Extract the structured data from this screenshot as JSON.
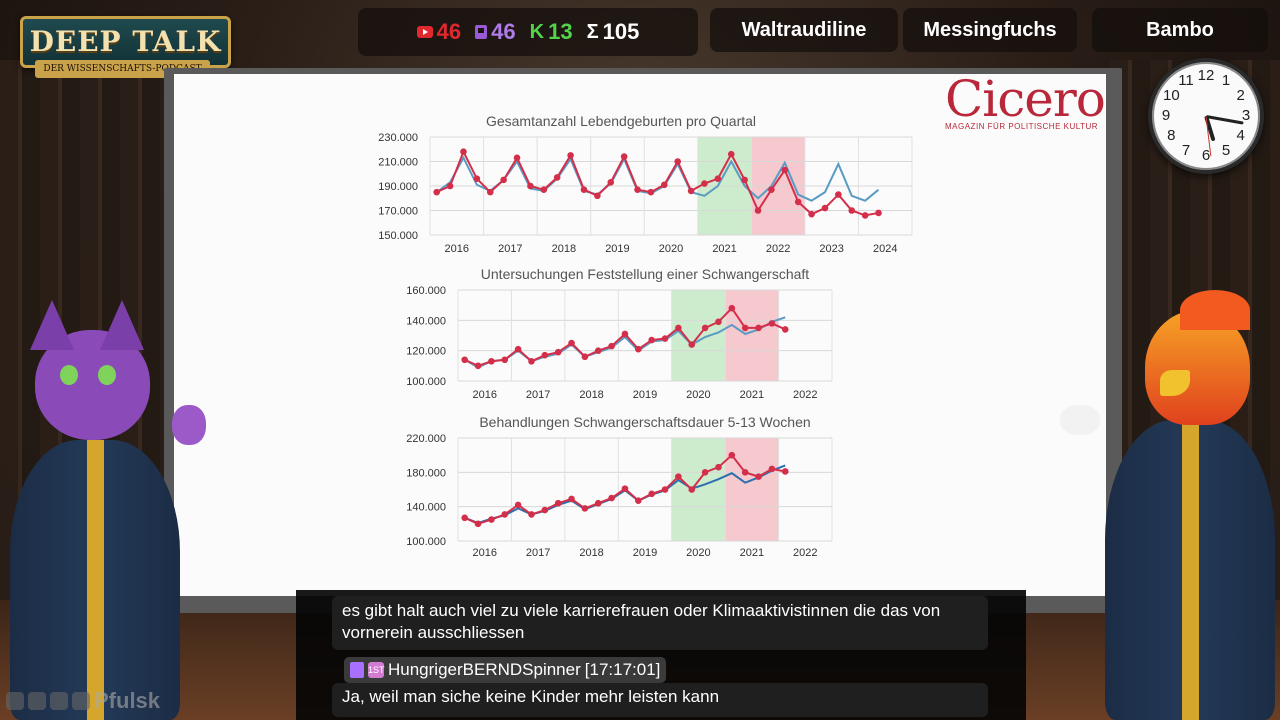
{
  "logo": {
    "title": "DEEP TALK",
    "subtitle": "DER WISSENSCHAFTS-PODCAST"
  },
  "stats": [
    {
      "icon": "youtube-icon",
      "value": "46",
      "color": "#e0282e"
    },
    {
      "icon": "twitch-icon",
      "value": "46",
      "color": "#b07be8"
    },
    {
      "icon": "kick-icon",
      "value": "13",
      "color": "#53d34a"
    },
    {
      "icon": "sum-icon",
      "value": "105",
      "color": "#ffffff"
    }
  ],
  "hosts": [
    "Waltraudiline",
    "Messingfuchs",
    "Bambo"
  ],
  "cicero": {
    "name": "Cicero",
    "tagline": "MAGAZIN FÜR POLITISCHE KULTUR"
  },
  "clock": {
    "numbers": [
      "12",
      "1",
      "2",
      "3",
      "4",
      "5",
      "6",
      "7",
      "8",
      "9",
      "10",
      "11"
    ],
    "hour_angle": 163,
    "minute_angle": 10
  },
  "chat": {
    "message1": "es gibt halt auch viel zu viele karrierefrauen oder Klimaaktivistinnen die das von vornerein ausschliessen",
    "user2": "HungrigerBERNDSpinner",
    "time2": "[17:17:01]",
    "message2": "Ja, weil man siche keine Kinder mehr leisten kann",
    "first_badge": "1ST"
  },
  "bottom_left": {
    "label": "Pfulsk"
  },
  "chart_data": [
    {
      "type": "line",
      "title": "Gesamtanzahl Lebendgeburten pro Quartal",
      "xlabels": [
        "2016",
        "2017",
        "2018",
        "2019",
        "2020",
        "2021",
        "2022",
        "2023",
        "2024"
      ],
      "yticks": [
        "230.000",
        "210.000",
        "190.000",
        "170.000",
        "150.000"
      ],
      "ylim": [
        150000,
        230000
      ],
      "shaded": [
        {
          "from": 20,
          "to": 24,
          "color": "#cdeccd"
        },
        {
          "from": 24,
          "to": 28,
          "color": "#f6c9cf"
        }
      ],
      "series": [
        {
          "color": "#d32f4a",
          "markers": true,
          "values": [
            185000,
            190000,
            218000,
            196000,
            185000,
            195000,
            213000,
            190000,
            187000,
            197000,
            215000,
            187000,
            182000,
            193000,
            214000,
            187000,
            185000,
            191000,
            210000,
            186000,
            192000,
            196000,
            216000,
            195000,
            170000,
            187000,
            203000,
            177000,
            167000,
            172000,
            183000,
            170000,
            166000,
            168000
          ]
        },
        {
          "color": "#5a9bc4",
          "markers": false,
          "values": [
            185000,
            193000,
            213000,
            191000,
            186000,
            195000,
            210000,
            188000,
            186000,
            196000,
            212000,
            186000,
            183000,
            192000,
            212000,
            186000,
            184000,
            190000,
            208000,
            185000,
            182000,
            190000,
            210000,
            190000,
            180000,
            190000,
            209000,
            183000,
            178000,
            185000,
            208000,
            182000,
            178000,
            187000
          ]
        }
      ]
    },
    {
      "type": "line",
      "title": "Untersuchungen Feststellung einer Schwangerschaft",
      "xlabels": [
        "2016",
        "2017",
        "2018",
        "2019",
        "2020",
        "2021",
        "2022"
      ],
      "yticks": [
        "160.000",
        "140.000",
        "120.000",
        "100.000"
      ],
      "ylim": [
        100000,
        160000
      ],
      "shaded": [
        {
          "from": 16,
          "to": 20,
          "color": "#cdeccd"
        },
        {
          "from": 20,
          "to": 24,
          "color": "#f6c9cf"
        }
      ],
      "series": [
        {
          "color": "#d32f4a",
          "markers": true,
          "values": [
            114000,
            110000,
            113000,
            114000,
            121000,
            113000,
            117000,
            119000,
            125000,
            116000,
            120000,
            123000,
            131000,
            121000,
            127000,
            128000,
            135000,
            124000,
            135000,
            139000,
            148000,
            135000,
            135000,
            138000,
            134000
          ]
        },
        {
          "color": "#5a9bc4",
          "markers": false,
          "values": [
            114000,
            109000,
            113000,
            114000,
            120000,
            113000,
            116000,
            118000,
            124000,
            116000,
            119000,
            122000,
            129000,
            120000,
            126000,
            127000,
            133000,
            124000,
            129000,
            132000,
            137000,
            131000,
            134000,
            139000,
            142000
          ]
        }
      ]
    },
    {
      "type": "line",
      "title": "Behandlungen Schwangerschaftsdauer 5-13 Wochen",
      "xlabels": [
        "2016",
        "2017",
        "2018",
        "2019",
        "2020",
        "2021",
        "2022"
      ],
      "yticks": [
        "220.000",
        "180.000",
        "140.000",
        "100.000"
      ],
      "ylim": [
        100000,
        220000
      ],
      "shaded": [
        {
          "from": 16,
          "to": 20,
          "color": "#cdeccd"
        },
        {
          "from": 20,
          "to": 24,
          "color": "#f6c9cf"
        }
      ],
      "series": [
        {
          "color": "#d32f4a",
          "markers": true,
          "values": [
            127000,
            120000,
            125000,
            131000,
            142000,
            131000,
            136000,
            144000,
            149000,
            138000,
            144000,
            150000,
            161000,
            147000,
            155000,
            160000,
            175000,
            160000,
            180000,
            186000,
            200000,
            180000,
            175000,
            184000,
            181000
          ]
        },
        {
          "color": "#2c6fad",
          "markers": false,
          "values": [
            127000,
            121000,
            126000,
            130000,
            138000,
            131000,
            135000,
            142000,
            147000,
            137000,
            143000,
            149000,
            159000,
            147000,
            154000,
            159000,
            171000,
            161000,
            166000,
            172000,
            179000,
            168000,
            174000,
            182000,
            188000
          ]
        }
      ]
    }
  ]
}
